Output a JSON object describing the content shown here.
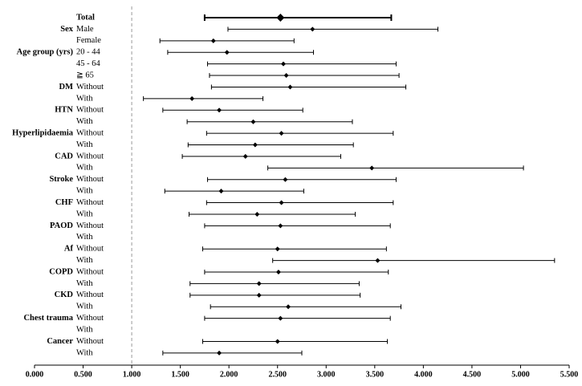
{
  "chart_data": {
    "type": "forest",
    "groups": [
      null,
      "Sex",
      null,
      "Age group (yrs)",
      null,
      null,
      "DM",
      null,
      "HTN",
      null,
      "Hyperlipidaemia",
      null,
      "CAD",
      null,
      "Stroke",
      null,
      "CHF",
      null,
      "PAOD",
      null,
      "Af",
      null,
      "COPD",
      null,
      "CKD",
      null,
      "Chest trauma",
      null,
      "Cancer",
      null
    ],
    "categories": [
      "Total",
      "Male",
      "Female",
      "20 - 44",
      "45 - 64",
      "≧ 65",
      "Without",
      "With",
      "Without",
      "With",
      "Without",
      "With",
      "Without",
      "With",
      "Without",
      "With",
      "Without",
      "With",
      "Without",
      "With",
      "Without",
      "With",
      "Without",
      "With",
      "Without",
      "With",
      "Without",
      "With",
      "Without",
      "With"
    ],
    "values": [
      2.53,
      2.86,
      1.84,
      1.98,
      2.56,
      2.59,
      2.63,
      1.62,
      1.9,
      2.25,
      2.54,
      2.27,
      2.17,
      3.47,
      2.58,
      1.92,
      2.54,
      2.29,
      2.53,
      null,
      2.5,
      3.53,
      2.51,
      2.31,
      2.31,
      2.61,
      2.53,
      null,
      2.5,
      1.9
    ],
    "ci_lower": [
      1.75,
      1.99,
      1.29,
      1.37,
      1.78,
      1.8,
      1.82,
      1.12,
      1.32,
      1.57,
      1.77,
      1.58,
      1.52,
      2.4,
      1.78,
      1.34,
      1.77,
      1.59,
      1.75,
      null,
      1.73,
      2.45,
      1.75,
      1.6,
      1.6,
      1.81,
      1.75,
      null,
      1.73,
      1.32
    ],
    "ci_upper": [
      3.67,
      4.15,
      2.67,
      2.87,
      3.72,
      3.75,
      3.82,
      2.35,
      2.76,
      3.27,
      3.69,
      3.28,
      3.15,
      5.03,
      3.72,
      2.77,
      3.69,
      3.3,
      3.66,
      null,
      3.62,
      5.35,
      3.64,
      3.34,
      3.35,
      3.77,
      3.66,
      null,
      3.63,
      2.75
    ],
    "color": "#000000",
    "reference_line": 1,
    "xlim": [
      0,
      5.5
    ],
    "xticks": [
      {
        "value": 0,
        "label": "0.000"
      },
      {
        "value": 0.5,
        "label": "0.500"
      },
      {
        "value": 1,
        "label": "1.000"
      },
      {
        "value": 1.5,
        "label": "1.500"
      },
      {
        "value": 2,
        "label": "2.000"
      },
      {
        "value": 2.5,
        "label": "2.500"
      },
      {
        "value": 3,
        "label": "3.000"
      },
      {
        "value": 3.5,
        "label": "3.500"
      },
      {
        "value": 4,
        "label": "4.000"
      },
      {
        "value": 4.5,
        "label": "4.500"
      },
      {
        "value": 5,
        "label": "5.000"
      },
      {
        "value": 5.5,
        "label": "5.500"
      }
    ]
  }
}
